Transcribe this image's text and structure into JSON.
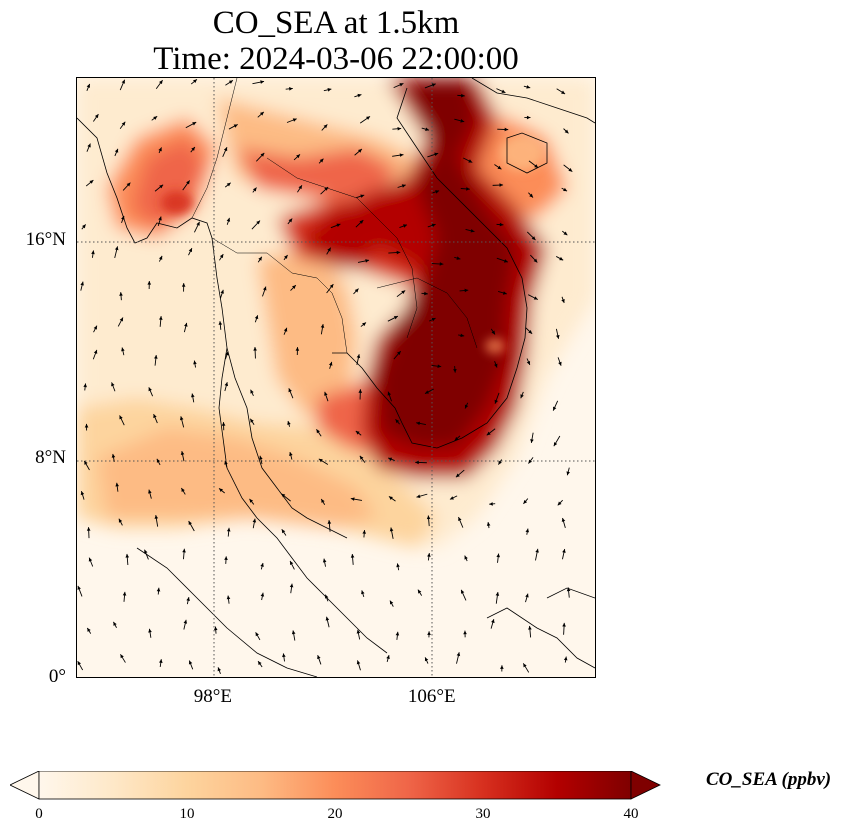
{
  "title_line1": "CO_SEA at 1.5km",
  "title_line2": "Time: 2024-03-06 22:00:00",
  "map": {
    "lat_ticks": [
      {
        "value": 16,
        "label": "16°N"
      },
      {
        "value": 8,
        "label": "8°N"
      },
      {
        "value": 0,
        "label": "0°"
      }
    ],
    "lon_ticks": [
      {
        "value": 98,
        "label": "98°E"
      },
      {
        "value": 106,
        "label": "106°E"
      }
    ],
    "extent": {
      "lon_min": 93,
      "lon_max": 112,
      "lat_min": 0,
      "lat_max": 22
    },
    "colormap": "OrRd",
    "vector_field": "wind arrows"
  },
  "colorbar": {
    "label": "CO_SEA (ppbv)",
    "min": 0,
    "max": 40,
    "extend": "both",
    "ticks": [
      "0",
      "10",
      "20",
      "30",
      "40"
    ],
    "colors": [
      "#fff7ec",
      "#fee8c8",
      "#fdd49e",
      "#fdbb84",
      "#fc8d59",
      "#ef6548",
      "#d7301f",
      "#b30000",
      "#7f0000"
    ]
  }
}
